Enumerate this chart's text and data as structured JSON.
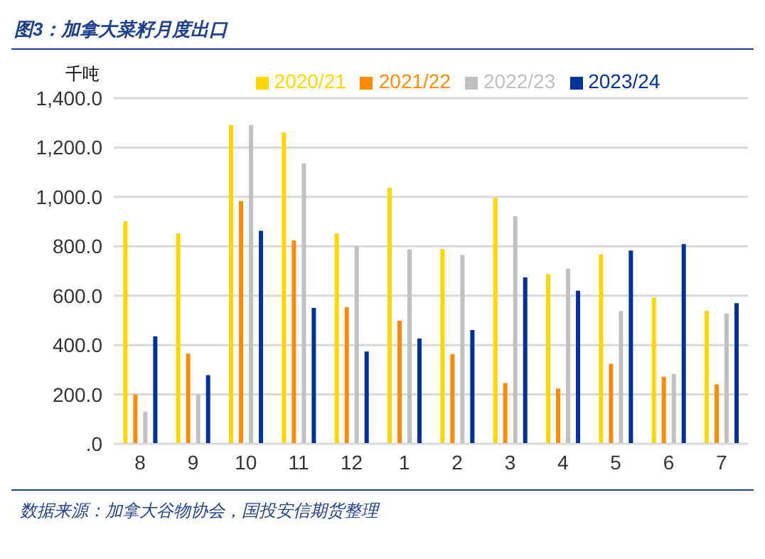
{
  "chart_data": {
    "type": "bar",
    "title": "图3：加拿大菜籽月度出口",
    "ylabel": "千吨",
    "categories": [
      "8",
      "9",
      "10",
      "11",
      "12",
      "1",
      "2",
      "3",
      "4",
      "5",
      "6",
      "7"
    ],
    "series": [
      {
        "name": "2020/21",
        "color": "#ffd700",
        "values": [
          902,
          852,
          1291,
          1261,
          852,
          1037,
          789,
          996,
          687,
          767,
          593,
          539
        ]
      },
      {
        "name": "2021/22",
        "color": "#ff8c00",
        "values": [
          200,
          365,
          983,
          824,
          554,
          498,
          363,
          246,
          224,
          324,
          272,
          241
        ]
      },
      {
        "name": "2022/23",
        "color": "#c0c0c0",
        "values": [
          130,
          200,
          1291,
          1135,
          800,
          787,
          765,
          922,
          709,
          537,
          283,
          528
        ]
      },
      {
        "name": "2023/24",
        "color": "#003399",
        "values": [
          435,
          278,
          863,
          550,
          374,
          426,
          461,
          674,
          620,
          783,
          809,
          570
        ]
      }
    ],
    "ylim": [
      0,
      1400
    ],
    "yticks": [
      {
        "value": 0,
        "label": ".0"
      },
      {
        "value": 200,
        "label": "200.0"
      },
      {
        "value": 400,
        "label": "400.0"
      },
      {
        "value": 600,
        "label": "600.0"
      },
      {
        "value": 800,
        "label": "800.0"
      },
      {
        "value": 1000,
        "label": "1,000.0"
      },
      {
        "value": 1200,
        "label": "1,200.0"
      },
      {
        "value": 1400,
        "label": "1,400.0"
      }
    ],
    "grid": "y",
    "legend": "top",
    "annotations": [
      "数据来源：加拿大谷物协会，国投安信期货整理"
    ]
  }
}
